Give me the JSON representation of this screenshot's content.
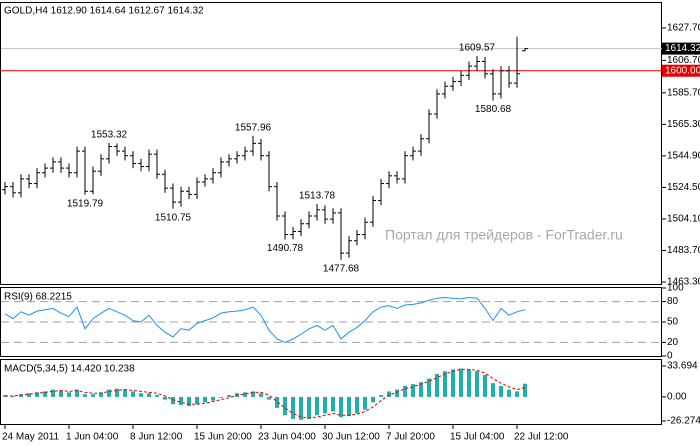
{
  "chart_data": [
    {
      "type": "ohlc",
      "title": "GOLD,H4  1612.90 1614.64 1612.67 1614.32",
      "watermark": "Портал для трейдеров - ForTrader.ru",
      "categories": [
        "24 May 2011",
        null,
        null,
        null,
        null,
        null,
        null,
        null,
        "1 Jun 04:00",
        null,
        null,
        null,
        null,
        null,
        null,
        null,
        "8 Jun 12:00",
        null,
        null,
        null,
        null,
        null,
        null,
        null,
        "15 Jun 20:00",
        null,
        null,
        null,
        null,
        null,
        null,
        null,
        "23 Jun 04:00",
        null,
        null,
        null,
        null,
        null,
        null,
        null,
        "30 Jun 12:00",
        null,
        null,
        null,
        null,
        null,
        null,
        null,
        "7 Jul 20:00",
        null,
        null,
        null,
        null,
        null,
        null,
        null,
        "15 Jul 04:00",
        null,
        null,
        null,
        null,
        null,
        null,
        null,
        "22 Jul 12:00",
        null
      ],
      "open": [
        1523,
        1525,
        1521,
        1530,
        1527,
        1534,
        1537,
        1541,
        1537,
        1534,
        1548,
        1522,
        1535,
        1543,
        1551,
        1548,
        1545,
        1540,
        1538,
        1546,
        1533,
        1524,
        1515,
        1522,
        1520,
        1528,
        1530,
        1534,
        1541,
        1543,
        1545,
        1548,
        1553,
        1545,
        1525,
        1506,
        1494,
        1496,
        1501,
        1506,
        1510,
        1504,
        1508,
        1482,
        1490,
        1494,
        1502,
        1516,
        1527,
        1532,
        1530,
        1545,
        1548,
        1556,
        1572,
        1585,
        1590,
        1593,
        1597,
        1603,
        1606,
        1598,
        1585,
        1600,
        1592,
        1612.9
      ],
      "high": [
        1528,
        1528,
        1533,
        1533,
        1537,
        1540,
        1544,
        1544,
        1540,
        1551,
        1551,
        1538,
        1546,
        1553.32,
        1553,
        1551,
        1548,
        1543,
        1549,
        1549,
        1536,
        1527,
        1525,
        1525,
        1531,
        1533,
        1537,
        1544,
        1546,
        1548,
        1551,
        1557.96,
        1556,
        1548,
        1528,
        1509,
        1499,
        1504,
        1509,
        1513.78,
        1513,
        1511,
        1511,
        1493,
        1497,
        1505,
        1519,
        1530,
        1535,
        1535,
        1548,
        1551,
        1559,
        1575,
        1588,
        1593,
        1596,
        1600,
        1606,
        1609.57,
        1609,
        1601,
        1603,
        1603,
        1622,
        1614.64
      ],
      "low": [
        1520,
        1518,
        1518,
        1524,
        1524,
        1531,
        1534,
        1534,
        1531,
        1531,
        1519.79,
        1520,
        1532,
        1540,
        1545,
        1542,
        1537,
        1535,
        1535,
        1530,
        1521,
        1510.75,
        1512,
        1517,
        1517,
        1525,
        1527,
        1531,
        1538,
        1540,
        1542,
        1545,
        1542,
        1522,
        1503,
        1490.78,
        1491,
        1493,
        1498,
        1503,
        1501,
        1501,
        1477.68,
        1479,
        1487,
        1491,
        1499,
        1513,
        1524,
        1527,
        1527,
        1542,
        1545,
        1553,
        1569,
        1582,
        1587,
        1590,
        1594,
        1600,
        1595,
        1580.68,
        1582,
        1589,
        1589,
        1612.67
      ],
      "close": [
        1525,
        1521,
        1530,
        1527,
        1534,
        1537,
        1541,
        1537,
        1534,
        1548,
        1522,
        1535,
        1543,
        1551,
        1548,
        1545,
        1540,
        1538,
        1546,
        1533,
        1524,
        1515,
        1522,
        1520,
        1528,
        1530,
        1534,
        1541,
        1543,
        1545,
        1548,
        1553,
        1545,
        1525,
        1506,
        1494,
        1496,
        1501,
        1506,
        1510,
        1504,
        1508,
        1482,
        1490,
        1494,
        1502,
        1516,
        1527,
        1532,
        1530,
        1545,
        1548,
        1556,
        1572,
        1585,
        1590,
        1593,
        1597,
        1603,
        1606,
        1598,
        1585,
        1600,
        1592,
        1598,
        1614.32
      ],
      "high_labels": [
        null,
        null,
        null,
        null,
        null,
        null,
        null,
        null,
        null,
        null,
        null,
        null,
        null,
        "1553.32",
        null,
        null,
        null,
        null,
        null,
        null,
        null,
        null,
        null,
        null,
        null,
        null,
        null,
        null,
        null,
        null,
        null,
        "1557.96",
        null,
        null,
        null,
        null,
        null,
        null,
        null,
        "1513.78",
        null,
        null,
        null,
        null,
        null,
        null,
        null,
        null,
        null,
        null,
        null,
        null,
        null,
        null,
        null,
        null,
        null,
        null,
        null,
        "1609.57",
        null,
        null,
        null,
        null,
        null,
        null
      ],
      "low_labels": [
        null,
        null,
        null,
        null,
        null,
        null,
        null,
        null,
        null,
        null,
        "1519.79",
        null,
        null,
        null,
        null,
        null,
        null,
        null,
        null,
        null,
        null,
        "1510.75",
        null,
        null,
        null,
        null,
        null,
        null,
        null,
        null,
        null,
        null,
        null,
        null,
        null,
        "1490.78",
        null,
        null,
        null,
        null,
        null,
        null,
        "1477.68",
        null,
        null,
        null,
        null,
        null,
        null,
        null,
        null,
        null,
        null,
        null,
        null,
        null,
        null,
        null,
        null,
        null,
        null,
        "1580.68",
        null,
        null,
        null,
        null
      ],
      "color": "#000000",
      "ylim": [
        1462.01,
        1643.82
      ],
      "yticks": [
        {
          "value": 1627.7,
          "label": "1627.70"
        },
        {
          "value": 1606.7,
          "label": "1606.70"
        },
        {
          "value": 1585.7,
          "label": "1585.70"
        },
        {
          "value": 1565.3,
          "label": "1565.30"
        },
        {
          "value": 1544.9,
          "label": "1544.90"
        },
        {
          "value": 1524.5,
          "label": "1524.50"
        },
        {
          "value": 1504.1,
          "label": "1504.10"
        },
        {
          "value": 1483.7,
          "label": "1483.70"
        },
        {
          "value": 1463.3,
          "label": "1463.30"
        }
      ],
      "hline": {
        "value": 1600,
        "label": "1600.00",
        "color": "#e00000"
      }
    },
    {
      "type": "line",
      "title": "RSI(9) 68.2215",
      "values": [
        62,
        55,
        65,
        60,
        66,
        68,
        70,
        63,
        58,
        72,
        40,
        55,
        63,
        70,
        65,
        60,
        52,
        50,
        60,
        45,
        35,
        28,
        40,
        38,
        48,
        52,
        56,
        63,
        65,
        66,
        68,
        72,
        60,
        38,
        25,
        20,
        25,
        32,
        40,
        45,
        38,
        45,
        25,
        35,
        42,
        52,
        65,
        72,
        74,
        70,
        75,
        76,
        78,
        82,
        85,
        86,
        85,
        84,
        86,
        85,
        70,
        52,
        70,
        60,
        65,
        68.2215
      ],
      "color": "#1e90ff",
      "ylim": [
        0,
        100
      ],
      "yticks": [
        100,
        80,
        50,
        20,
        0
      ],
      "levels": [
        80,
        50,
        20
      ]
    },
    {
      "type": "macd",
      "title": "MACD(5,34,5) 14.420 10.238",
      "values": [
        2,
        1,
        3,
        4,
        5,
        6,
        8,
        7,
        5,
        8,
        3,
        3,
        5,
        8,
        9,
        8,
        6,
        4,
        4,
        2,
        -3,
        -8,
        -9,
        -10,
        -8,
        -6,
        -4,
        -1,
        2,
        4,
        5,
        6,
        4,
        -3,
        -12,
        -20,
        -24,
        -25,
        -24,
        -20,
        -18,
        -16,
        -22,
        -21,
        -18,
        -14,
        -6,
        2,
        6,
        8,
        12,
        14,
        16,
        20,
        25,
        28,
        30,
        31,
        30,
        28,
        24,
        15,
        12,
        8,
        6,
        14.42
      ],
      "signal": [
        1,
        1,
        2,
        3,
        4,
        5,
        6,
        7,
        6,
        7,
        5,
        4,
        4,
        6,
        7,
        8,
        7,
        6,
        5,
        4,
        1,
        -3,
        -6,
        -8,
        -8,
        -7,
        -5,
        -3,
        -1,
        2,
        3,
        5,
        5,
        2,
        -5,
        -12,
        -18,
        -22,
        -23,
        -22,
        -20,
        -18,
        -20,
        -20,
        -19,
        -16,
        -11,
        -4,
        2,
        5,
        9,
        11,
        14,
        17,
        21,
        25,
        28,
        30,
        30,
        29,
        26,
        20,
        15,
        11,
        8,
        10.238
      ],
      "color": "#20b2aa",
      "signal_color": "#e00000",
      "ylim": [
        -26.274,
        33.694
      ],
      "yticks": [
        33.694,
        {
          "value": 0,
          "label": "0.00"
        },
        -26.274
      ]
    }
  ]
}
